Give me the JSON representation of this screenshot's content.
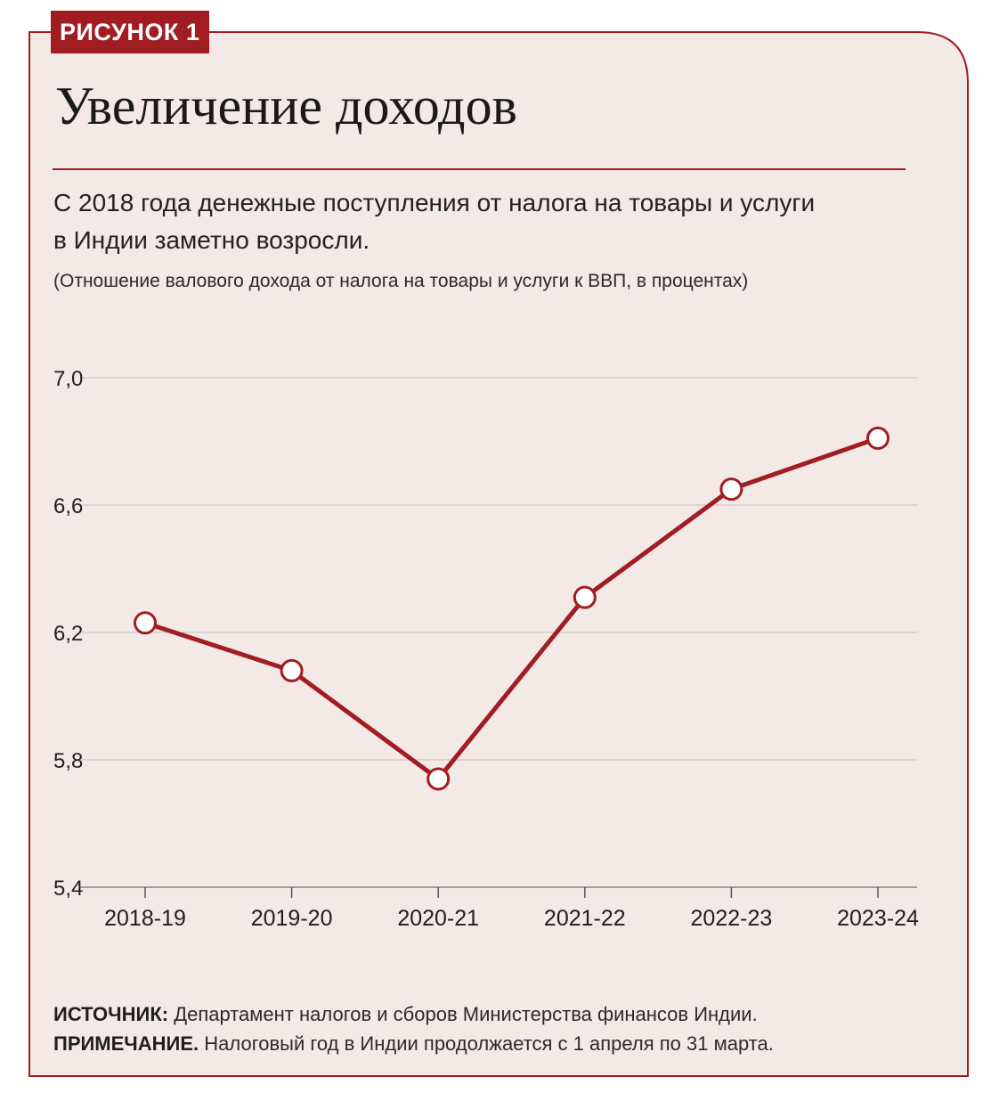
{
  "figure": {
    "badge": "РИСУНОК 1",
    "title": "Увеличение доходов",
    "subtitle_lines": [
      "С 2018 года денежные поступления от налога на товары и услуги",
      "в Индии заметно возросли."
    ],
    "note": "(Отношение валового дохода от налога на товары и услуги к ВВП, в процентах)",
    "source_label": "ИСТОЧНИК:",
    "source_text": " Департамент налогов и сборов Министерства финансов Индии.",
    "remark_label": "ПРИМЕЧАНИЕ.",
    "remark_text": " Налоговый год в Индии продолжается с 1 апреля по 31 марта."
  },
  "colors": {
    "accent": "#a11d22",
    "panel_background": "#f3e9e6",
    "grid": "#c9c0bd",
    "text": "#222222"
  },
  "chart_data": {
    "type": "line",
    "title": "Увеличение доходов",
    "categories": [
      "2018-19",
      "2019-20",
      "2020-21",
      "2021-22",
      "2022-23",
      "2023-24"
    ],
    "series": [
      {
        "values": [
          6.23,
          6.08,
          5.74,
          6.31,
          6.65,
          6.81
        ]
      }
    ],
    "yticks": [
      "7,0",
      "6,6",
      "6,2",
      "5,8",
      "5,4"
    ],
    "ytick_values": [
      7.0,
      6.6,
      6.2,
      5.8,
      5.4
    ],
    "ylim": [
      5.4,
      7.0
    ],
    "xlabel": "",
    "ylabel": "",
    "grid": true,
    "markers": "open-circle"
  }
}
